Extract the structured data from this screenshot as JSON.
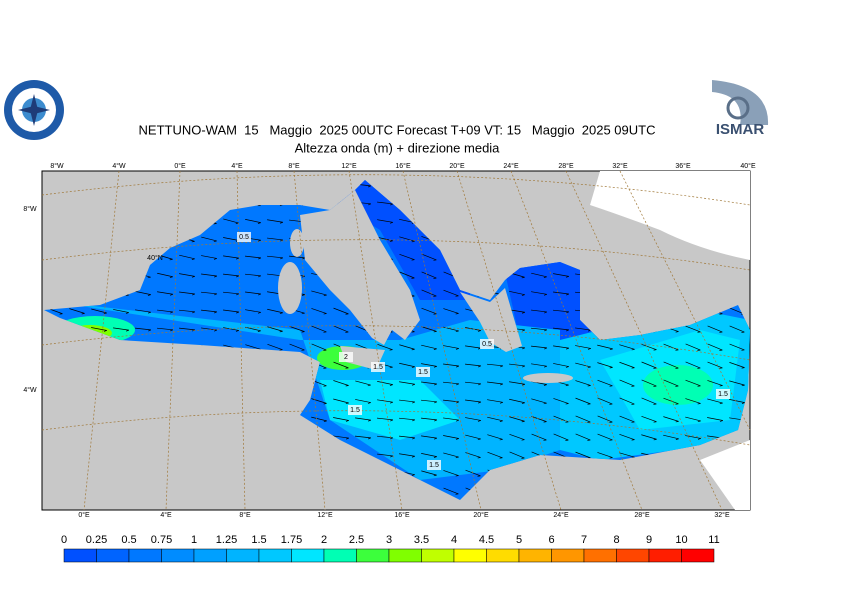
{
  "header": {
    "title": "NETTUNO-WAM  15   Maggio  2025 00UTC Forecast T+09 VT: 15   Maggio  2025 09UTC",
    "subtitle": "Altezza onda (m) + direzione media",
    "logo_right": "ISMAR"
  },
  "map": {
    "lon_top": [
      "8°W",
      "4°W",
      "0°E",
      "4°E",
      "8°E",
      "12°E",
      "16°E",
      "20°E",
      "24°E",
      "28°E",
      "32°E",
      "36°E",
      "40°E"
    ],
    "lon_bottom": [
      "0°E",
      "4°E",
      "8°E",
      "12°E",
      "16°E",
      "20°E",
      "24°E",
      "28°E",
      "32°E"
    ],
    "lat_left": [
      "8°W",
      "4°W"
    ],
    "lat_label": "40°N",
    "contour_labels": [
      "0.5",
      "2",
      "1.5",
      "1.5",
      "0.5",
      "1.5",
      "1.5",
      "1.5"
    ]
  },
  "colorbar": {
    "labels": [
      0,
      0.25,
      0.5,
      0.75,
      1,
      1.25,
      1.5,
      1.75,
      2,
      2.5,
      3,
      3.5,
      4,
      4.5,
      5,
      6,
      7,
      8,
      9,
      10,
      11
    ],
    "colors": [
      "#0050ff",
      "#0064ff",
      "#0078ff",
      "#008cff",
      "#00a0ff",
      "#00b4ff",
      "#00c8ff",
      "#00e6ff",
      "#00ffb4",
      "#3cff3c",
      "#80ff00",
      "#c0ff00",
      "#ffff00",
      "#ffdc00",
      "#ffb400",
      "#ff9600",
      "#ff7000",
      "#ff4600",
      "#ff1e00",
      "#ff0000"
    ]
  }
}
